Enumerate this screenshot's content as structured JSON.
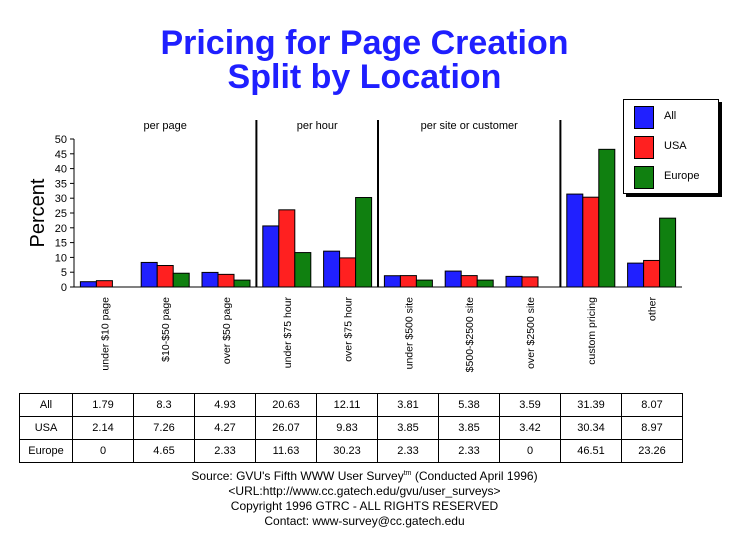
{
  "title_line1": "Pricing for Page Creation",
  "title_line2": "Split by Location",
  "footer": {
    "source_a": "Source: GVU's Fifth WWW User Survey",
    "source_sup": "tm",
    "source_b": " (Conducted April 1996)",
    "url": "<URL:http://www.cc.gatech.edu/gvu/user_surveys>",
    "copyright": "Copyright 1996 GTRC - ALL RIGHTS RESERVED",
    "contact": "Contact: www-survey@cc.gatech.edu"
  },
  "colors": {
    "All": "#2020ff",
    "USA": "#ff2020",
    "Europe": "#108010"
  },
  "chart_data": {
    "type": "bar",
    "ylabel": "Percent",
    "ylim": [
      0,
      50
    ],
    "yticks": [
      0,
      5,
      10,
      15,
      20,
      25,
      30,
      35,
      40,
      45,
      50
    ],
    "grid": false,
    "legend_position": "top-right",
    "group_labels": [
      {
        "label": "per page",
        "span": [
          0,
          2
        ]
      },
      {
        "label": "per hour",
        "span": [
          3,
          4
        ]
      },
      {
        "label": "per site or customer",
        "span": [
          5,
          7
        ]
      }
    ],
    "categories": [
      "under $10 page",
      "$10-$50 page",
      "over $50 page",
      "under $75 hour",
      "over $75 hour",
      "under $500 site",
      "$500-$2500 site",
      "over $2500 site",
      "custom pricing",
      "other"
    ],
    "series": [
      {
        "name": "All",
        "values": [
          "1.79",
          "8.3",
          "4.93",
          "20.63",
          "12.11",
          "3.81",
          "5.38",
          "3.59",
          "31.39",
          "8.07"
        ]
      },
      {
        "name": "USA",
        "values": [
          "2.14",
          "7.26",
          "4.27",
          "26.07",
          "9.83",
          "3.85",
          "3.85",
          "3.42",
          "30.34",
          "8.97"
        ]
      },
      {
        "name": "Europe",
        "values": [
          "0",
          "4.65",
          "2.33",
          "11.63",
          "30.23",
          "2.33",
          "2.33",
          "0",
          "46.51",
          "23.26"
        ]
      }
    ]
  }
}
